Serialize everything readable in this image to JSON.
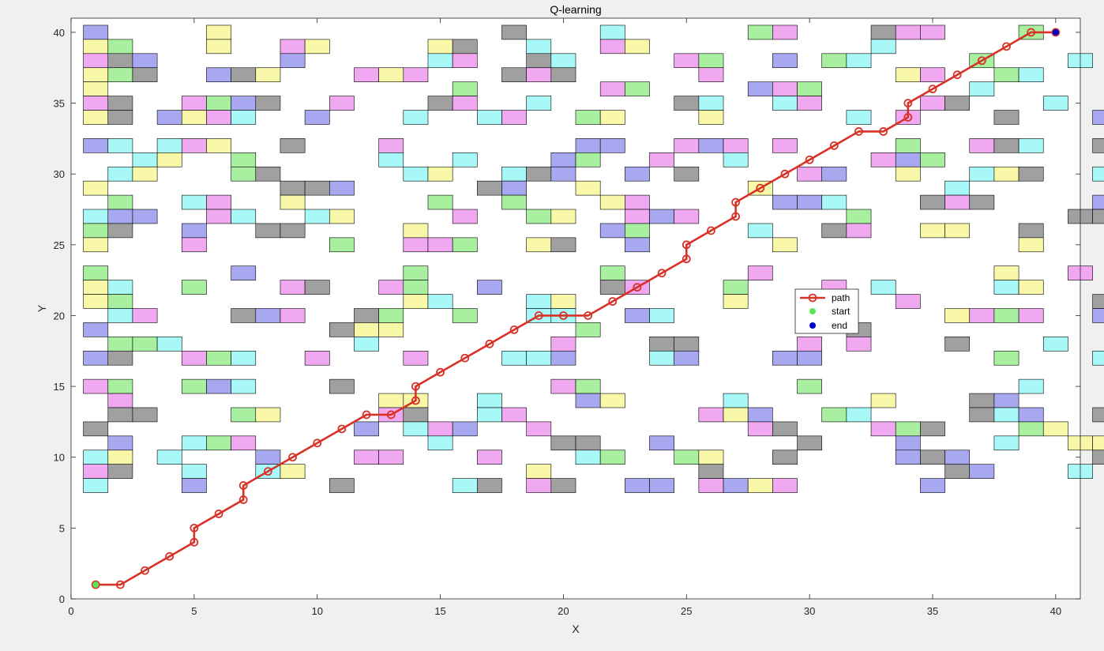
{
  "chart_data": {
    "type": "line",
    "title": "Q-learning",
    "xlabel": "X",
    "ylabel": "Y",
    "xlim": [
      0,
      41
    ],
    "ylim": [
      0,
      41
    ],
    "xticks": [
      0,
      5,
      10,
      15,
      20,
      25,
      30,
      35,
      40
    ],
    "yticks": [
      0,
      5,
      10,
      15,
      20,
      25,
      30,
      35,
      40
    ],
    "grid": false,
    "legend_position": "center",
    "cell_colors": {
      "p": "#f0a8f0",
      "g": "#a8f0a0",
      "b": "#a8a8f0",
      "c": "#a8f8f8",
      "y": "#f8f8a8",
      "k": "#a0a0a0"
    },
    "obstacle_rows": [
      [
        "b....y...........k...c.....gp...kpp...g.....y..c.",
        "yg...y..py....yk..c..py.........c..........gy...p.cc.",
        "pkb.....b.....cp..kc....pg..b.gc....g...c.ygcy",
        "ygk..bky...pyp...kpk.....p.......yp..gc...gcc...ke..",
        "y..............g.....pg....bpg......c",
        "pk..pgbk..p...kp..c.....kc..cp....pk...c.......kpc....gy.pc",
        "yk.bypc..b...c..cp..gy...y.....c.p...k...b.yk...k.c"
      ],
      [],
      [
        "bc.cpy..k...p.......bb..pbp.p....g..pkc..kg",
        "..cy..g.....c..c...bg..p..c.....pbg",
        ".cy...gk.....cy..ckb..b.k....pb..y..cyk..c.yc",
        "y.......kkb.....kb..y......y.......c",
        ".g..cp..y.....g..g...yp.....bbc...kpk....bp",
        "cbb..pc..cy....p..gy..pbp......g........kkp",
        "gk..b..kk....y.......bg....c..kp..yy..k.....kc",
        "y...p.....g..ppg..yk..b.....y.........y........g"
      ],
      [],
      [
        "g.....b......g.......g.....p.........y..p",
        "yc..g...pk..pg..b....kp...g...p.c....cy....y.yg",
        "yg...........yc...cy......y..c...p.......k......y",
        ".cp...kbp..kg..g..cc..bc...........ypgp..bkb...yb.",
        "b.........kyy.......g..........k...........y",
        ".ggc.......c.......p...kk....p.p...k...c....cpk....gy",
        "bk..pgc..p...p...ccb...cb...bb.......g...ck..ckg...gy"
      ],
      [],
      [
        "pg..gbc...k........pg........g........c.........gbgg..by",
        ".p..........yy..c...by....c.....y...kb......b",
        ".kk...gy....pk..cp.......pyb..gc....kcb..kc..y...kp",
        "k..........b.cpb..p........pk...pgk...gy..y..............c",
        ".b..cgp.......c....kk..b.....k...b...c..yy...",
        "cy.c...b...pp...p...cg..gy..k....bkb.....k....pb.g",
        "pk..c..cy.........y......k.........kb...c........k",
        "c...b.....k....ck.pk..bb.pbyp.....b.........p"
      ]
    ],
    "series": [
      {
        "name": "path",
        "color": "#d83228",
        "points": [
          [
            1,
            1
          ],
          [
            2,
            1
          ],
          [
            3,
            2
          ],
          [
            4,
            3
          ],
          [
            5,
            4
          ],
          [
            5,
            5
          ],
          [
            6,
            6
          ],
          [
            7,
            7
          ],
          [
            7,
            8
          ],
          [
            8,
            9
          ],
          [
            9,
            10
          ],
          [
            10,
            11
          ],
          [
            11,
            12
          ],
          [
            12,
            13
          ],
          [
            13,
            13
          ],
          [
            14,
            14
          ],
          [
            14,
            15
          ],
          [
            15,
            16
          ],
          [
            16,
            17
          ],
          [
            17,
            18
          ],
          [
            18,
            19
          ],
          [
            19,
            20
          ],
          [
            20,
            20
          ],
          [
            21,
            20
          ],
          [
            22,
            21
          ],
          [
            23,
            22
          ],
          [
            24,
            23
          ],
          [
            25,
            24
          ],
          [
            25,
            25
          ],
          [
            26,
            26
          ],
          [
            27,
            27
          ],
          [
            27,
            28
          ],
          [
            28,
            29
          ],
          [
            29,
            30
          ],
          [
            30,
            31
          ],
          [
            31,
            32
          ],
          [
            32,
            33
          ],
          [
            33,
            33
          ],
          [
            34,
            34
          ],
          [
            34,
            35
          ],
          [
            35,
            36
          ],
          [
            36,
            37
          ],
          [
            37,
            38
          ],
          [
            38,
            39
          ],
          [
            39,
            40
          ],
          [
            40,
            40
          ]
        ]
      },
      {
        "name": "start",
        "color": "#5ce65c",
        "points": [
          [
            1,
            1
          ]
        ]
      },
      {
        "name": "end",
        "color": "#0000cc",
        "points": [
          [
            40,
            40
          ]
        ]
      }
    ]
  }
}
